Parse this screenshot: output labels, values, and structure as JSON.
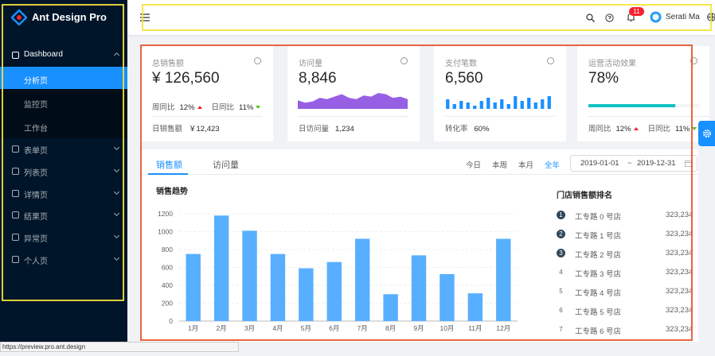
{
  "sidebar": {
    "logo": "Ant Design Pro",
    "menu": [
      {
        "label": "Dashboard",
        "children": [
          "分析页",
          "监控页",
          "工作台"
        ]
      },
      {
        "label": "表单页"
      },
      {
        "label": "列表页"
      },
      {
        "label": "详情页"
      },
      {
        "label": "结果页"
      },
      {
        "label": "异常页"
      },
      {
        "label": "个人页"
      }
    ]
  },
  "header": {
    "notification_count": 11,
    "user": "Serati Ma"
  },
  "cards": [
    {
      "title": "总销售额",
      "value": "¥ 126,560",
      "week_label": "周同比",
      "week_value": "12%",
      "day_label": "日同比",
      "day_value": "11%",
      "footer_label": "日销售额",
      "footer_value": "￥12,423"
    },
    {
      "title": "访问量",
      "value": "8,846",
      "trend": [
        7,
        5,
        6,
        9,
        8,
        10,
        12,
        9,
        8,
        11,
        10,
        13,
        12,
        9,
        10,
        8
      ],
      "footer_label": "日访问量",
      "footer_value": "1,234"
    },
    {
      "title": "支付笔数",
      "value": "6,560",
      "trend": [
        6,
        3,
        5,
        4,
        2,
        5,
        7,
        4,
        6,
        3,
        8,
        5,
        7,
        4,
        6,
        8
      ],
      "footer_label": "转化率",
      "footer_value": "60%"
    },
    {
      "title": "运营活动效果",
      "value": 78,
      "value_label": "78%",
      "week_label": "周同比",
      "week_value": "12%",
      "day_label": "日同比",
      "day_value": "11%"
    }
  ],
  "sales_panel": {
    "tabs": [
      "销售额",
      "访问量"
    ],
    "ranges": [
      "今日",
      "本周",
      "本月",
      "全年"
    ],
    "date_start": "2019-01-01",
    "date_sep": "~",
    "date_end": "2019-12-31",
    "chart": {
      "type": "bar",
      "title": "销售趋势",
      "categories": [
        "1月",
        "2月",
        "3月",
        "4月",
        "5月",
        "6月",
        "7月",
        "8月",
        "9月",
        "10月",
        "11月",
        "12月"
      ],
      "values": [
        750,
        1180,
        1010,
        750,
        590,
        660,
        920,
        300,
        735,
        525,
        310,
        920
      ],
      "color": "#58afff",
      "ylim": [
        0,
        1200
      ],
      "yticks": [
        0,
        200,
        400,
        600,
        800,
        1000,
        1200
      ],
      "grid": true
    },
    "ranking": {
      "title": "门店销售额排名",
      "items": [
        {
          "rank": 1,
          "name": "工专路 0 号店",
          "value": "323,234"
        },
        {
          "rank": 2,
          "name": "工专路 1 号店",
          "value": "323,234"
        },
        {
          "rank": 3,
          "name": "工专路 2 号店",
          "value": "323,234"
        },
        {
          "rank": 4,
          "name": "工专路 3 号店",
          "value": "323,234"
        },
        {
          "rank": 5,
          "name": "工专路 4 号店",
          "value": "323,234"
        },
        {
          "rank": 6,
          "name": "工专路 5 号店",
          "value": "323,234"
        },
        {
          "rank": 7,
          "name": "工专路 6 号店",
          "value": "323,234"
        }
      ]
    }
  },
  "status_url": "https://preview.pro.ant.design"
}
